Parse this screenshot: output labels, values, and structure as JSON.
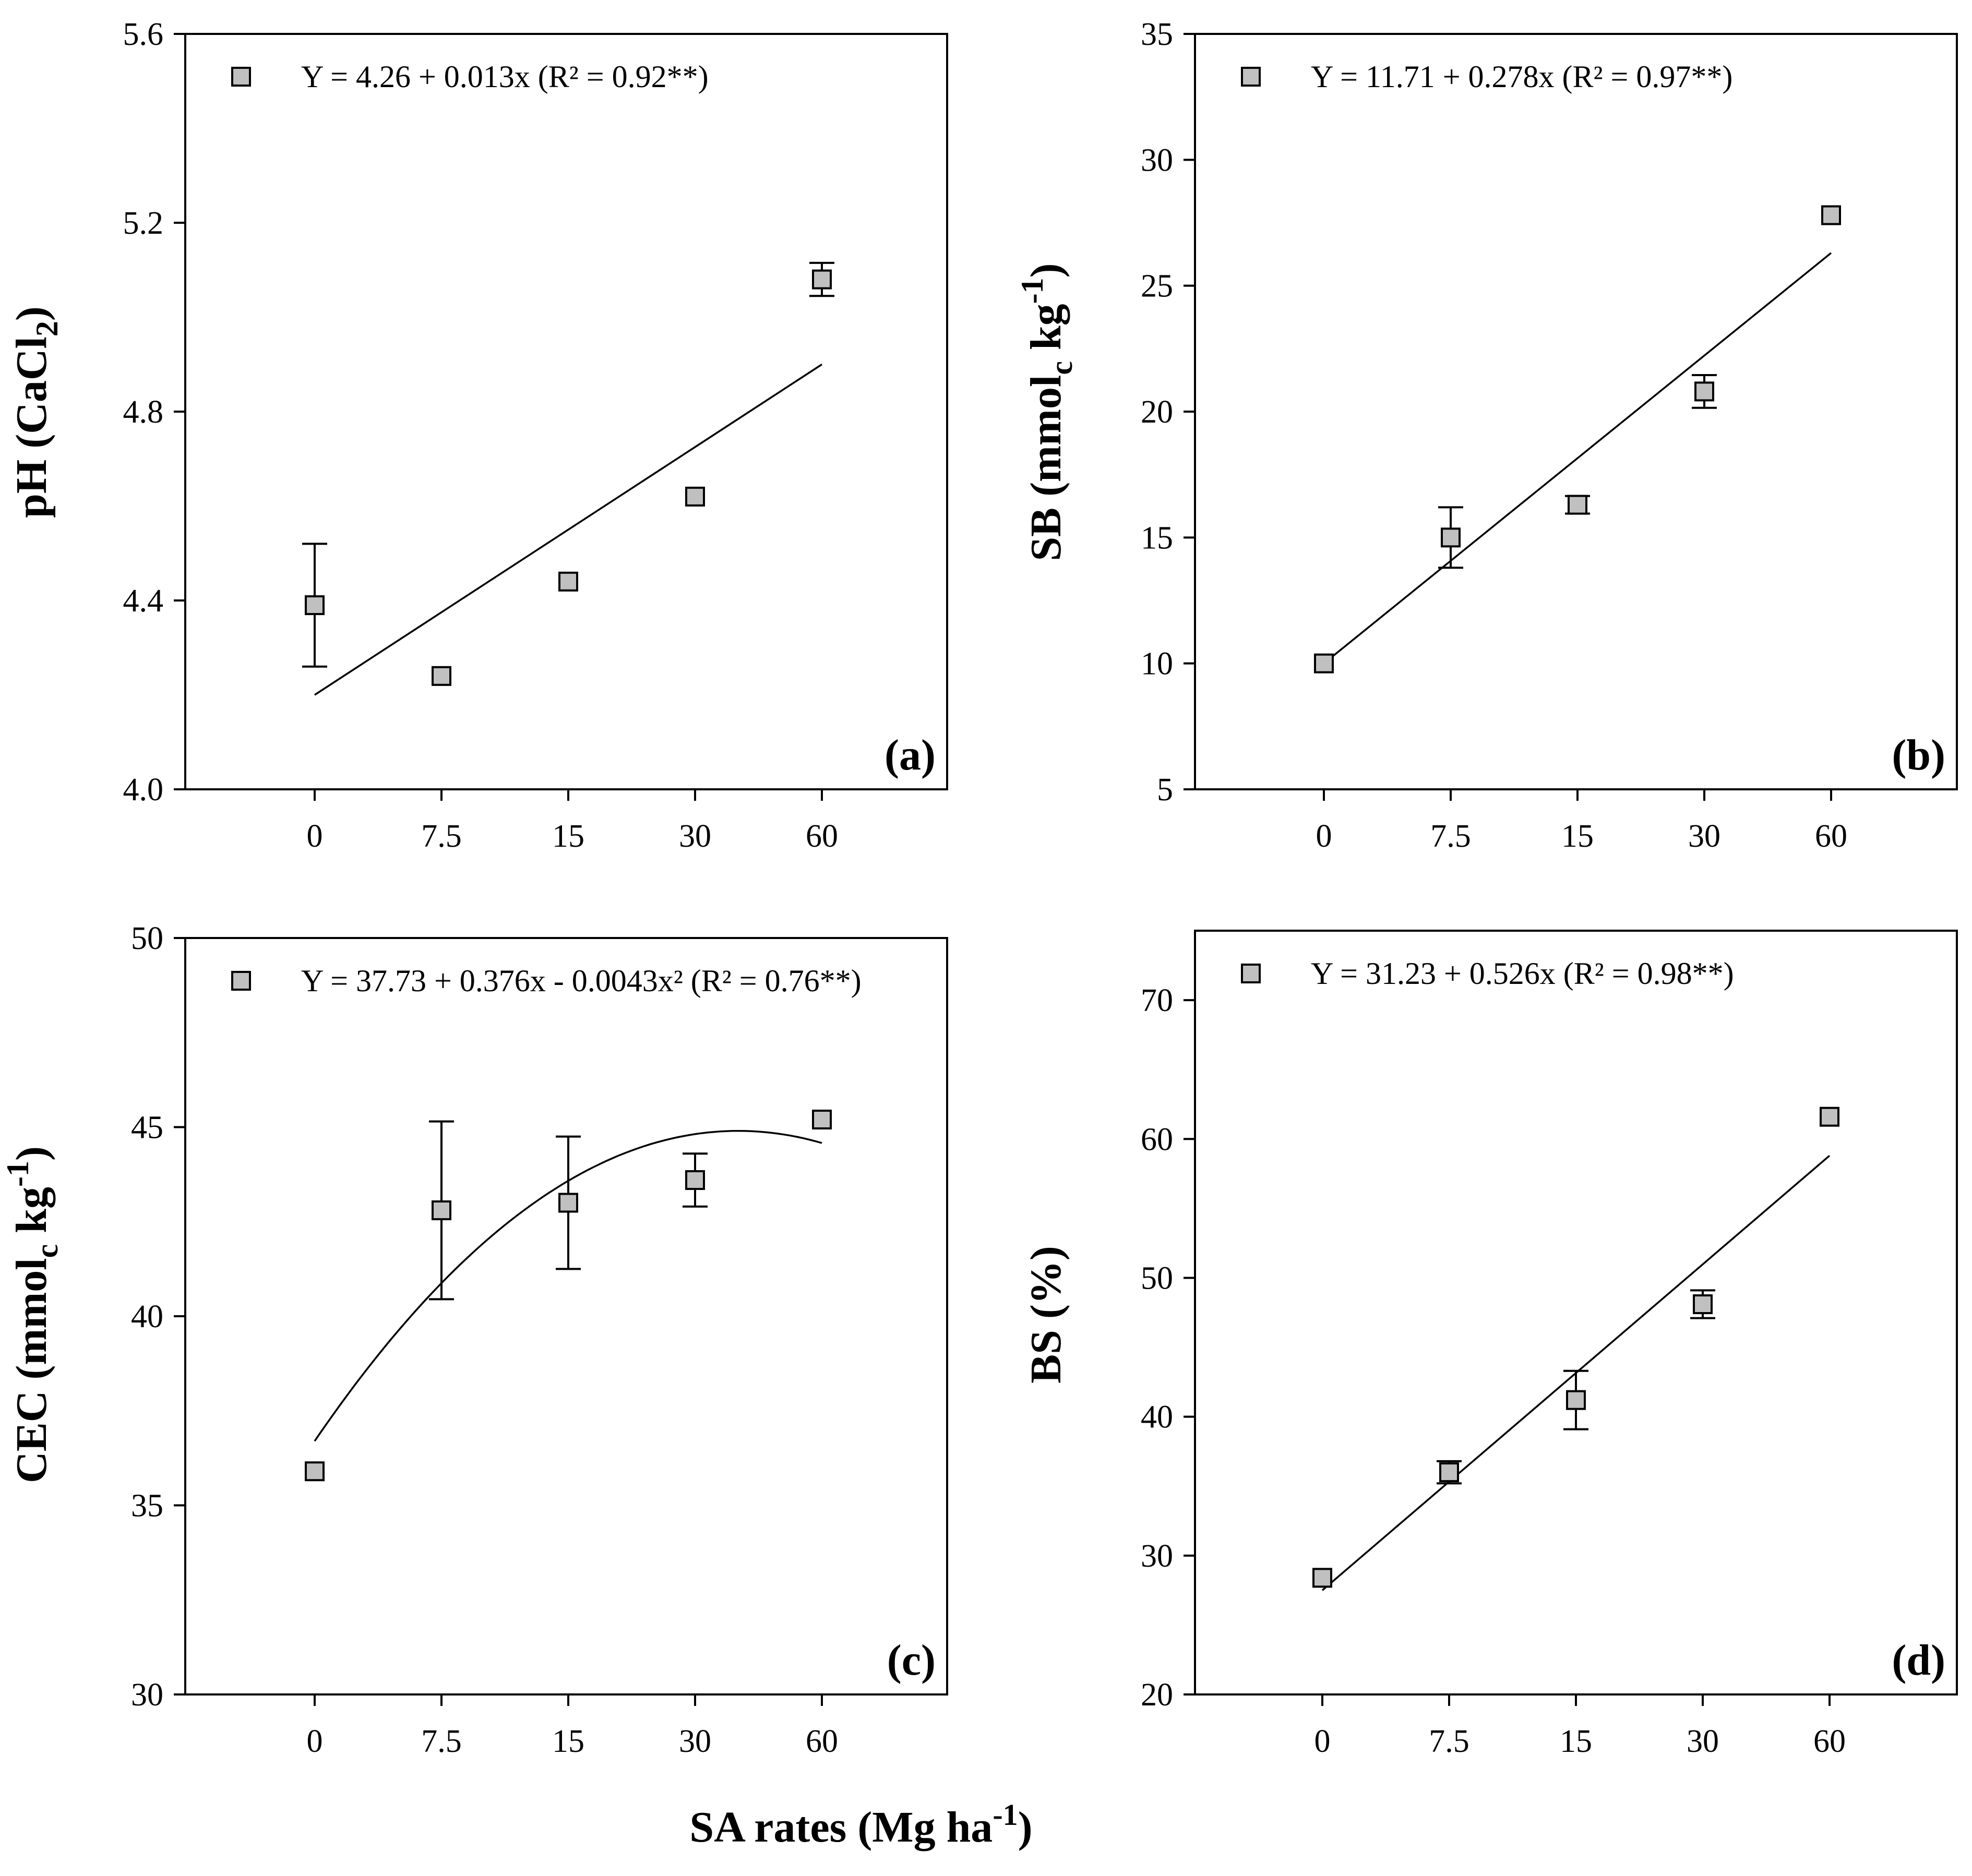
{
  "xlabel": {
    "main": "SA rates (Mg ha",
    "sup": "-1",
    "close": ")"
  },
  "chart_data": [
    {
      "type": "scatter",
      "panel_label": "(a)",
      "ylabel": {
        "prefix": "pH (CaCl",
        "sub": "2",
        "suffix": ")"
      },
      "categories": [
        "0",
        "7.5",
        "15",
        "30",
        "60"
      ],
      "ylim": [
        4.0,
        5.6
      ],
      "yticks": [
        4.0,
        4.4,
        4.8,
        5.2,
        5.6
      ],
      "ytick_labels": [
        "4.0",
        "4.4",
        "4.8",
        "5.2",
        "5.6"
      ],
      "values": [
        4.39,
        4.24,
        4.44,
        4.62,
        5.08
      ],
      "errors": [
        0.13,
        0,
        0,
        0,
        0.035
      ],
      "legend_text": "Y = 4.26 + 0.013x (R² = 0.92**)",
      "fit": {
        "kind": "linear",
        "y_start": 4.2,
        "y_end": 4.9
      }
    },
    {
      "type": "scatter",
      "panel_label": "(b)",
      "ylabel": {
        "prefix": "SB (mmol",
        "sub": "c",
        "mid": " kg",
        "sup": "-1",
        "suffix": ")"
      },
      "categories": [
        "0",
        "7.5",
        "15",
        "30",
        "60"
      ],
      "ylim": [
        5,
        35
      ],
      "yticks": [
        5,
        10,
        15,
        20,
        25,
        30,
        35
      ],
      "ytick_labels": [
        "5",
        "10",
        "15",
        "20",
        "25",
        "30",
        "35"
      ],
      "values": [
        10.0,
        15.0,
        16.3,
        20.8,
        27.8
      ],
      "errors": [
        0,
        1.2,
        0.35,
        0.65,
        0
      ],
      "legend_text": "Y = 11.71 + 0.278x (R² = 0.97**)",
      "fit": {
        "kind": "linear",
        "y_start": 10.0,
        "y_end": 26.3
      }
    },
    {
      "type": "scatter",
      "panel_label": "(c)",
      "ylabel": {
        "prefix": "CEC (mmol",
        "sub": "c",
        "mid": " kg",
        "sup": "-1",
        "suffix": ")"
      },
      "categories": [
        "0",
        "7.5",
        "15",
        "30",
        "60"
      ],
      "ylim": [
        30,
        50
      ],
      "yticks": [
        30,
        35,
        40,
        45,
        50
      ],
      "ytick_labels": [
        "30",
        "35",
        "40",
        "45",
        "50"
      ],
      "values": [
        35.9,
        42.8,
        43.0,
        43.6,
        45.2
      ],
      "errors": [
        0,
        2.35,
        1.75,
        0.7,
        0
      ],
      "legend_text": "Y = 37.73 + 0.376x - 0.0043x² (R² = 0.76**)",
      "fit": {
        "kind": "quadratic_on_category_index",
        "y_start": 36.7,
        "y_vertex": 44.9,
        "vertex_at": 3.34,
        "y_end": 44.6
      }
    },
    {
      "type": "scatter",
      "panel_label": "(d)",
      "ylabel": {
        "prefix": "BS (%)"
      },
      "categories": [
        "0",
        "7.5",
        "15",
        "30",
        "60"
      ],
      "ylim": [
        20,
        75
      ],
      "yticks": [
        20,
        30,
        40,
        50,
        60,
        70
      ],
      "ytick_labels": [
        "20",
        "30",
        "40",
        "50",
        "60",
        "70"
      ],
      "values": [
        28.4,
        36.0,
        41.2,
        48.1,
        61.6
      ],
      "errors": [
        0,
        0.8,
        2.1,
        1.0,
        0
      ],
      "legend_text": "Y = 31.23 + 0.526x (R² = 0.98**)",
      "fit": {
        "kind": "linear",
        "y_start": 27.5,
        "y_end": 58.8
      }
    }
  ]
}
